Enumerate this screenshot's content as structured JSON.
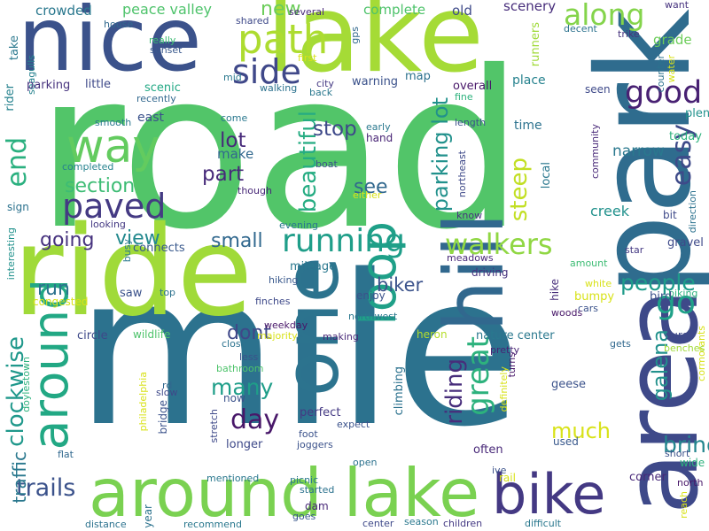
{
  "words": [
    {
      "text": "road",
      "color": "#52c569"
    },
    {
      "text": "mile",
      "color": "#2c728e"
    },
    {
      "text": "lake",
      "color": "#a5db36"
    },
    {
      "text": "nice",
      "color": "#3b528b"
    },
    {
      "text": "ride",
      "color": "#a0da39"
    },
    {
      "text": "park",
      "color": "#2f6c8e"
    },
    {
      "text": "area",
      "color": "#3e4989"
    },
    {
      "text": "hill",
      "color": "#31688e"
    },
    {
      "text": "around lake",
      "color": "#7ad151"
    },
    {
      "text": "one",
      "color": "#2c738e"
    },
    {
      "text": "bike",
      "color": "#443983"
    },
    {
      "text": "loop",
      "color": "#1fa088"
    },
    {
      "text": "around",
      "color": "#22a884"
    },
    {
      "text": "way",
      "color": "#63cb5f"
    },
    {
      "text": "path",
      "color": "#addc30"
    },
    {
      "text": "side",
      "color": "#3f4889"
    },
    {
      "text": "running",
      "color": "#1f9e89"
    },
    {
      "text": "walkers",
      "color": "#90d743"
    },
    {
      "text": "paved",
      "color": "#443a83"
    },
    {
      "text": "good",
      "color": "#482173"
    },
    {
      "text": "along",
      "color": "#84d44b"
    },
    {
      "text": "great",
      "color": "#2db27d"
    },
    {
      "text": "parking lot",
      "color": "#21918c"
    },
    {
      "text": "beautiful",
      "color": "#25ac82"
    },
    {
      "text": "easy",
      "color": "#3e4a89"
    },
    {
      "text": "galena",
      "color": "#21918c"
    },
    {
      "text": "go",
      "color": "#1fa188"
    },
    {
      "text": "people",
      "color": "#1e9b8a"
    },
    {
      "text": "end",
      "color": "#2ab07f"
    },
    {
      "text": "riding",
      "color": "#472d7b"
    },
    {
      "text": "clockwise",
      "color": "#1f988b"
    },
    {
      "text": "trails",
      "color": "#3b528b"
    },
    {
      "text": "day",
      "color": "#481769"
    },
    {
      "text": "many",
      "color": "#1f9e89"
    },
    {
      "text": "bring",
      "color": "#24868e"
    },
    {
      "text": "much",
      "color": "#d8e219"
    },
    {
      "text": "steep",
      "color": "#c2df23"
    },
    {
      "text": "stop",
      "color": "#3e4989"
    },
    {
      "text": "lot",
      "color": "#472a7a"
    },
    {
      "text": "part",
      "color": "#472a7a"
    },
    {
      "text": "section",
      "color": "#3dbc74"
    },
    {
      "text": "going",
      "color": "#46327e"
    },
    {
      "text": "view",
      "color": "#23898e"
    },
    {
      "text": "small",
      "color": "#31688e"
    },
    {
      "text": "run",
      "color": "#2c728e"
    },
    {
      "text": "biker",
      "color": "#3b528b"
    },
    {
      "text": "dont",
      "color": "#3f4889"
    },
    {
      "text": "new",
      "color": "#6ccd5a"
    },
    {
      "text": "see",
      "color": "#31688e"
    },
    {
      "text": "make",
      "color": "#31688e"
    },
    {
      "text": "narrow",
      "color": "#2a788e"
    },
    {
      "text": "traffic",
      "color": "#2a788e"
    },
    {
      "text": "crowded",
      "color": "#2a788e"
    },
    {
      "text": "peace valley",
      "color": "#4ec36b"
    },
    {
      "text": "scenery",
      "color": "#472d7b"
    },
    {
      "text": "complete",
      "color": "#4ec36b"
    },
    {
      "text": "old",
      "color": "#3e4a89"
    },
    {
      "text": "grade",
      "color": "#6ccd5a"
    },
    {
      "text": "want",
      "color": "#46327e"
    },
    {
      "text": "house",
      "color": "#31688e"
    },
    {
      "text": "take",
      "color": "#2a788e"
    },
    {
      "text": "seagulls",
      "color": "#26828e"
    },
    {
      "text": "really",
      "color": "#3dbc74"
    },
    {
      "text": "sunset",
      "color": "#38588c"
    },
    {
      "text": "first",
      "color": "#d8e219"
    },
    {
      "text": "shared",
      "color": "#3e4989"
    },
    {
      "text": "several",
      "color": "#482878"
    },
    {
      "text": "gps",
      "color": "#31688e"
    },
    {
      "text": "runners",
      "color": "#a0da39"
    },
    {
      "text": "decent",
      "color": "#2c728e"
    },
    {
      "text": "trike",
      "color": "#46327e"
    },
    {
      "text": "counter",
      "color": "#2c728e"
    },
    {
      "text": "water",
      "color": "#d8e219"
    },
    {
      "text": "parking",
      "color": "#46327e"
    },
    {
      "text": "little",
      "color": "#3e4989"
    },
    {
      "text": "mid",
      "color": "#2a788e"
    },
    {
      "text": "rider",
      "color": "#26828e"
    },
    {
      "text": "scenic",
      "color": "#22a884"
    },
    {
      "text": "recently",
      "color": "#31688e"
    },
    {
      "text": "walking",
      "color": "#2c728e"
    },
    {
      "text": "city",
      "color": "#443983"
    },
    {
      "text": "back",
      "color": "#2a788e"
    },
    {
      "text": "warning",
      "color": "#3b528b"
    },
    {
      "text": "map",
      "color": "#2c728e"
    },
    {
      "text": "fine",
      "color": "#2db27d"
    },
    {
      "text": "overall",
      "color": "#481769"
    },
    {
      "text": "place",
      "color": "#26828e"
    },
    {
      "text": "seen",
      "color": "#3e4989"
    },
    {
      "text": "plenty",
      "color": "#21918c"
    },
    {
      "text": "today",
      "color": "#2db27d"
    },
    {
      "text": "east",
      "color": "#3b528b"
    },
    {
      "text": "smooth",
      "color": "#2a788e"
    },
    {
      "text": "come",
      "color": "#2a788e"
    },
    {
      "text": "early",
      "color": "#2a788e"
    },
    {
      "text": "hand",
      "color": "#482475"
    },
    {
      "text": "length",
      "color": "#3b528b"
    },
    {
      "text": "time",
      "color": "#2c728e"
    },
    {
      "text": "community",
      "color": "#482878"
    },
    {
      "text": "completed",
      "color": "#26828e"
    },
    {
      "text": "boat",
      "color": "#3b528b"
    },
    {
      "text": "northeast",
      "color": "#3e4989"
    },
    {
      "text": "local",
      "color": "#2a788e"
    },
    {
      "text": "sign",
      "color": "#2c728e"
    },
    {
      "text": "though",
      "color": "#482878"
    },
    {
      "text": "either",
      "color": "#d8e219"
    },
    {
      "text": "creek",
      "color": "#21918c"
    },
    {
      "text": "bit",
      "color": "#3e4989"
    },
    {
      "text": "direction",
      "color": "#2c728e"
    },
    {
      "text": "looking",
      "color": "#443983"
    },
    {
      "text": "evening",
      "color": "#2a788e"
    },
    {
      "text": "know",
      "color": "#46327e"
    },
    {
      "text": "connects",
      "color": "#38588c"
    },
    {
      "text": "interesting",
      "color": "#21918c"
    },
    {
      "text": "mileage",
      "color": "#2a788e"
    },
    {
      "text": "meadows",
      "color": "#482878"
    },
    {
      "text": "star",
      "color": "#443983"
    },
    {
      "text": "gravel",
      "color": "#3e4a89"
    },
    {
      "text": "busy",
      "color": "#2a788e"
    },
    {
      "text": "hiking",
      "color": "#38588c"
    },
    {
      "text": "amount",
      "color": "#3dbc74"
    },
    {
      "text": "driving",
      "color": "#46327e"
    },
    {
      "text": "saw",
      "color": "#3b528b"
    },
    {
      "text": "top",
      "color": "#2c728e"
    },
    {
      "text": "hike",
      "color": "#472d7b"
    },
    {
      "text": "white",
      "color": "#d8e219"
    },
    {
      "text": "biking",
      "color": "#2db27d"
    },
    {
      "text": "congested",
      "color": "#d8e219"
    },
    {
      "text": "enjoy",
      "color": "#3b528b"
    },
    {
      "text": "bumpy",
      "color": "#d8e219"
    },
    {
      "text": "bird",
      "color": "#3b528b"
    },
    {
      "text": "finches",
      "color": "#3e4989"
    },
    {
      "text": "northwest",
      "color": "#2a788e"
    },
    {
      "text": "cars",
      "color": "#3b528b"
    },
    {
      "text": "woods",
      "color": "#481769"
    },
    {
      "text": "weekday",
      "color": "#481769"
    },
    {
      "text": "circle",
      "color": "#3e4989"
    },
    {
      "text": "wildlife",
      "color": "#4ec36b"
    },
    {
      "text": "majority",
      "color": "#d8e219"
    },
    {
      "text": "making",
      "color": "#482878"
    },
    {
      "text": "heron",
      "color": "#b5de2b"
    },
    {
      "text": "nature center",
      "color": "#2a788e"
    },
    {
      "text": "sure",
      "color": "#3e4989"
    },
    {
      "text": "gets",
      "color": "#31688e"
    },
    {
      "text": "cormorants",
      "color": "#d8e219"
    },
    {
      "text": "benches",
      "color": "#a0da39"
    },
    {
      "text": "close",
      "color": "#2c728e"
    },
    {
      "text": "less",
      "color": "#3b528b"
    },
    {
      "text": "bathroom",
      "color": "#4ec36b"
    },
    {
      "text": "pretty",
      "color": "#482475"
    },
    {
      "text": "doylestown",
      "color": "#2db27d"
    },
    {
      "text": "philadelphia",
      "color": "#d8e219"
    },
    {
      "text": "rd",
      "color": "#31688e"
    },
    {
      "text": "slow",
      "color": "#3e4989"
    },
    {
      "text": "now",
      "color": "#3b528b"
    },
    {
      "text": "turns",
      "color": "#481769"
    },
    {
      "text": "geese",
      "color": "#3b528b"
    },
    {
      "text": "definitely",
      "color": "#d8e219"
    },
    {
      "text": "bridge",
      "color": "#3b528b"
    },
    {
      "text": "climbing",
      "color": "#2c728e"
    },
    {
      "text": "perfect",
      "color": "#443983"
    },
    {
      "text": "expect",
      "color": "#3b528b"
    },
    {
      "text": "stretch",
      "color": "#3e4989"
    },
    {
      "text": "longer",
      "color": "#3e4989"
    },
    {
      "text": "foot",
      "color": "#3b528b"
    },
    {
      "text": "joggers",
      "color": "#3b528b"
    },
    {
      "text": "used",
      "color": "#38588c"
    },
    {
      "text": "often",
      "color": "#482878"
    },
    {
      "text": "short",
      "color": "#3b528b"
    },
    {
      "text": "wide",
      "color": "#2db27d"
    },
    {
      "text": "flat",
      "color": "#31688e"
    },
    {
      "text": "open",
      "color": "#2c728e"
    },
    {
      "text": "ive",
      "color": "#3b528b"
    },
    {
      "text": "rail",
      "color": "#d8e219"
    },
    {
      "text": "corner",
      "color": "#482878"
    },
    {
      "text": "mentioned",
      "color": "#2a788e"
    },
    {
      "text": "picnic",
      "color": "#2a788e"
    },
    {
      "text": "started",
      "color": "#2c728e"
    },
    {
      "text": "north",
      "color": "#481769"
    },
    {
      "text": "year",
      "color": "#2c728e"
    },
    {
      "text": "dam",
      "color": "#482878"
    },
    {
      "text": "goes",
      "color": "#38588c"
    },
    {
      "text": "reach",
      "color": "#d8e219"
    },
    {
      "text": "distance",
      "color": "#2c728e"
    },
    {
      "text": "recommend",
      "color": "#2a788e"
    },
    {
      "text": "center",
      "color": "#3e4989"
    },
    {
      "text": "season",
      "color": "#2a788e"
    },
    {
      "text": "children",
      "color": "#443983"
    },
    {
      "text": "difficult",
      "color": "#2a788e"
    }
  ]
}
